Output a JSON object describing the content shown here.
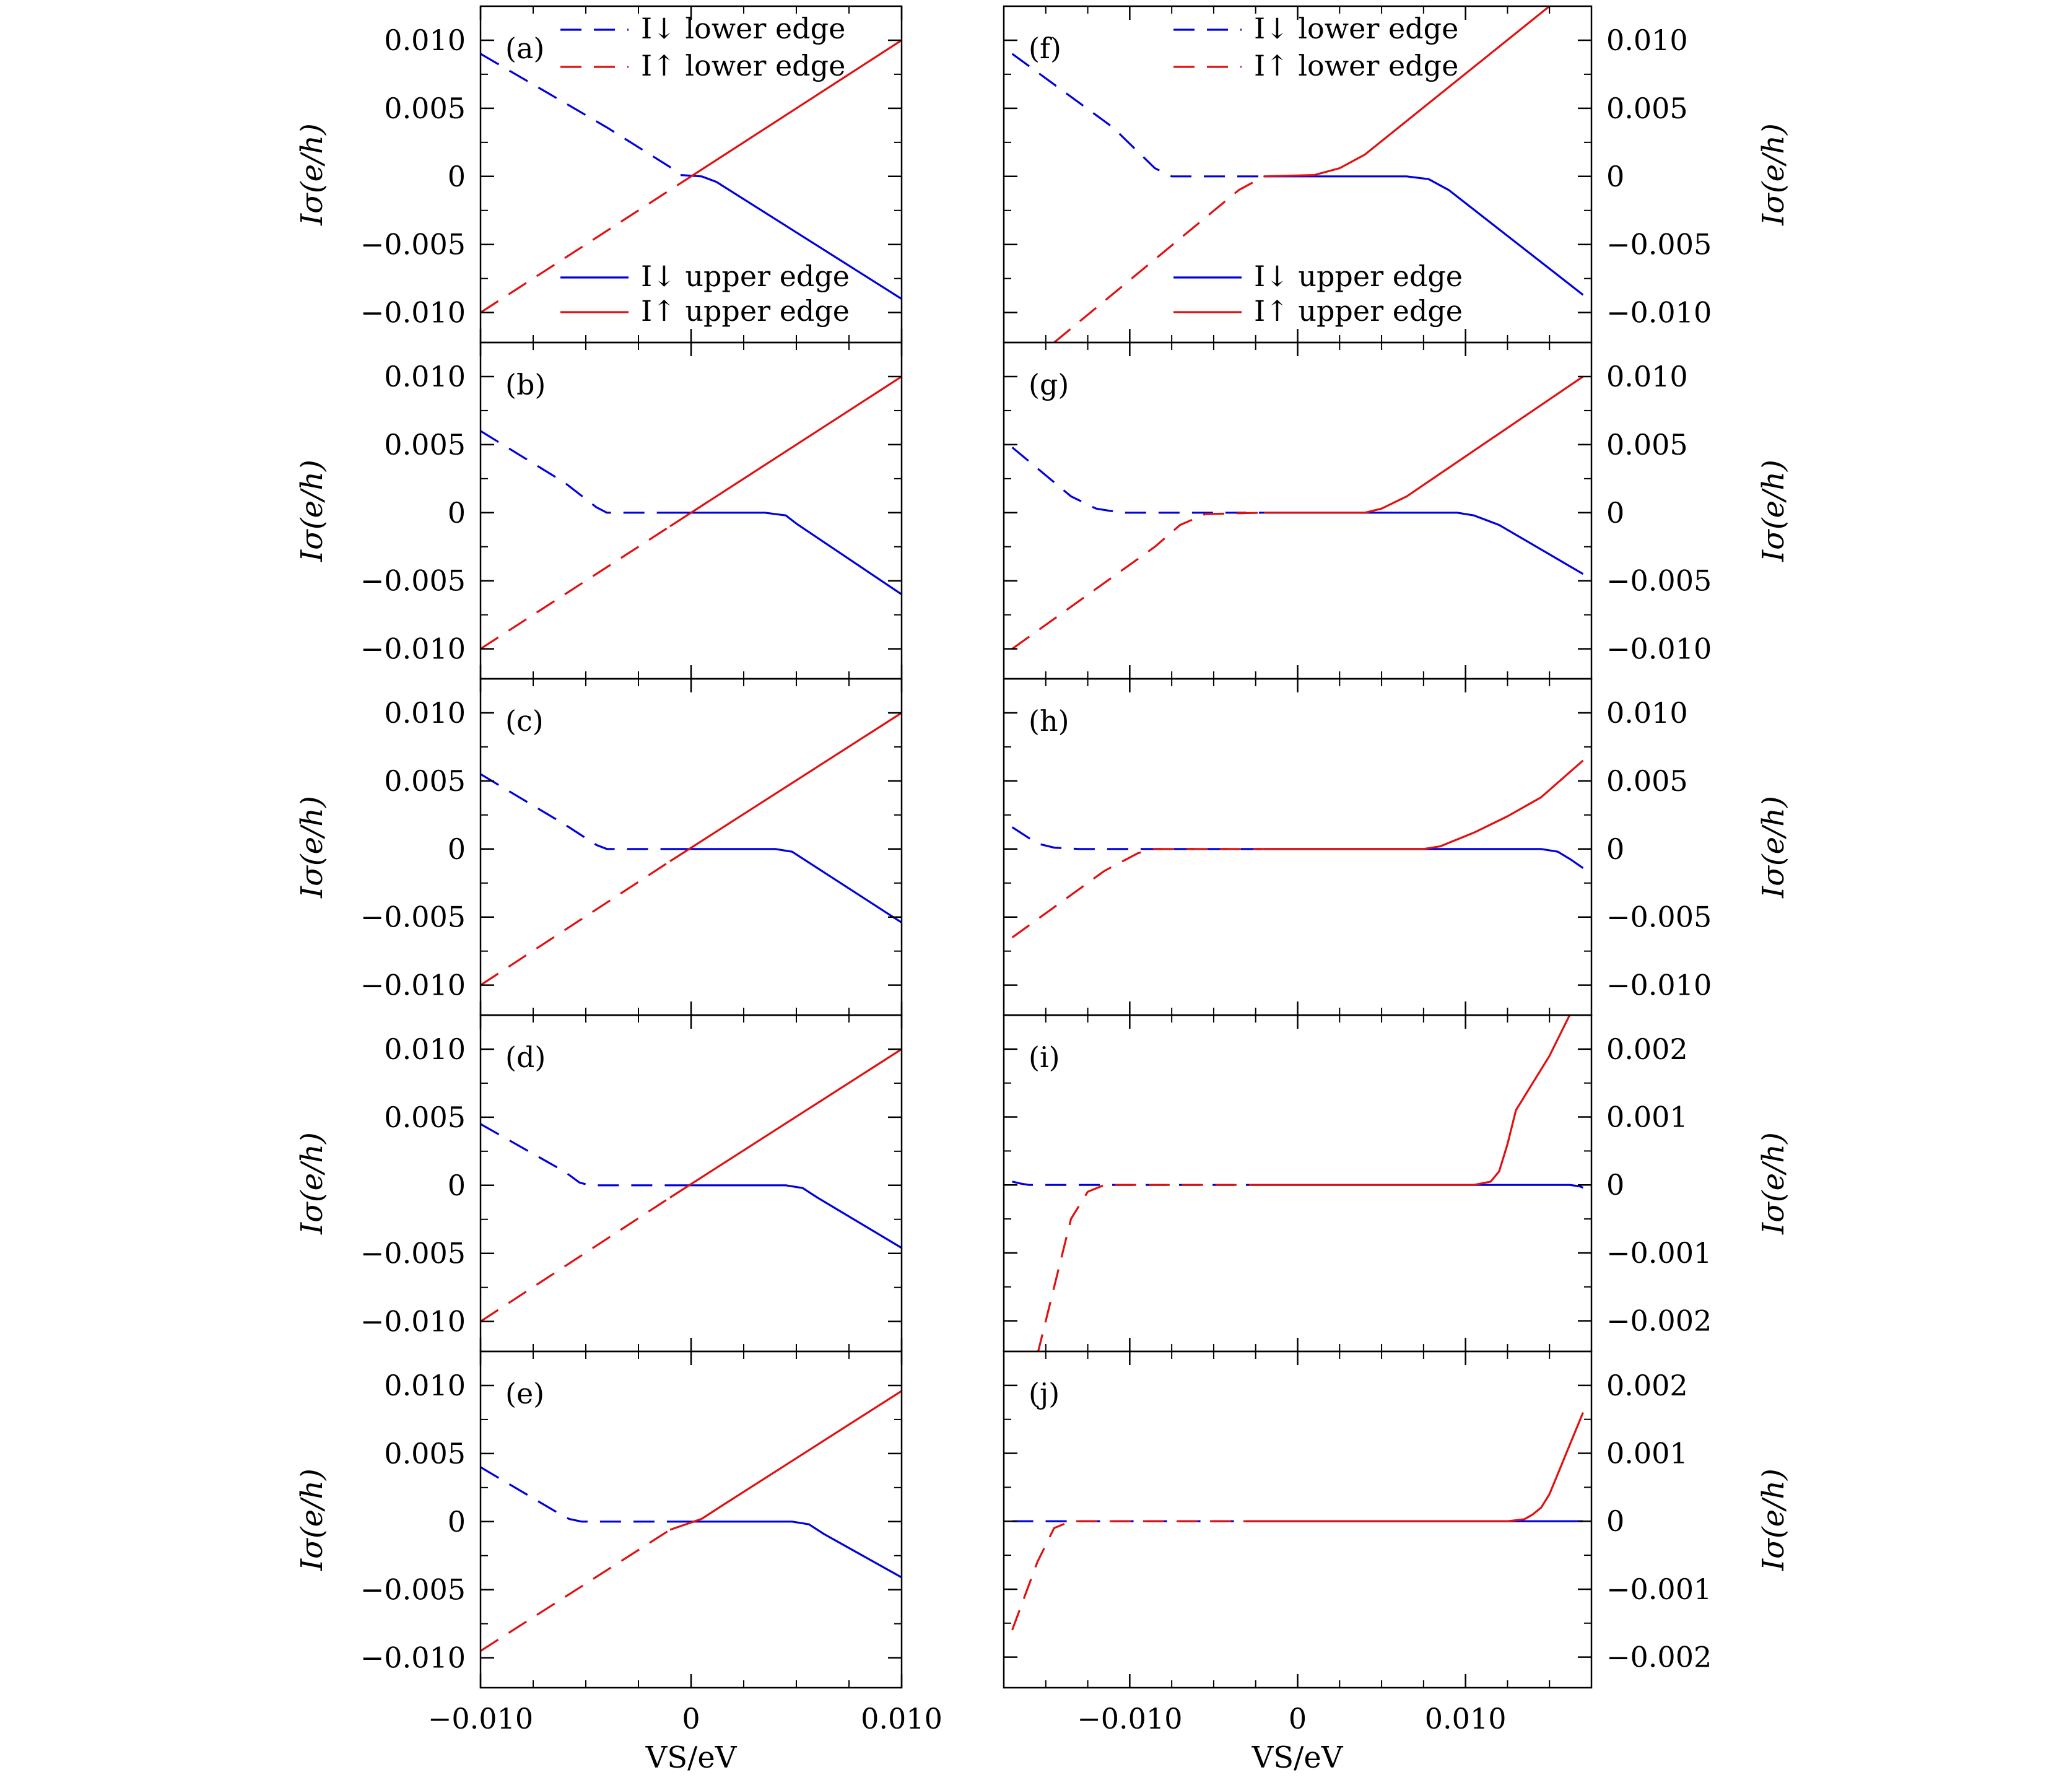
{
  "colors": {
    "down": "#0000dd",
    "up": "#e01010",
    "axis": "#000000"
  },
  "labels": {
    "ylabel": "Iσ(e/h)",
    "xlabel": "VS/eV",
    "legend": {
      "down_lower": "I↓ lower edge",
      "up_lower": "I↑ lower edge",
      "down_upper": "I↓ upper edge",
      "up_upper": "I↑ upper edge"
    }
  },
  "chart_data": [
    {
      "type": "line",
      "panel": "(a)",
      "xlim": [
        -0.01,
        0.01
      ],
      "ylim": [
        -0.0122,
        0.0125
      ],
      "yticks": [
        -0.01,
        -0.005,
        0,
        0.005,
        0.01
      ],
      "yticklabels": [
        "−0.010",
        "−0.005",
        "0",
        "0.005",
        "0.010"
      ],
      "xticks": [
        -0.01,
        0,
        0.01
      ],
      "xticklabels": [
        "",
        "",
        ""
      ],
      "series": [
        {
          "name": "I↓ lower edge",
          "x": [
            -0.01,
            -0.004,
            -0.0005
          ],
          "y": [
            0.009,
            0.0036,
            0.0002
          ]
        },
        {
          "name": "I↑ lower edge",
          "x": [
            -0.01,
            -0.004,
            -0.0005
          ],
          "y": [
            -0.01,
            -0.004,
            -0.0005
          ]
        },
        {
          "name": "I↓ upper edge",
          "x": [
            -0.0005,
            0.0005,
            0.0012,
            0.01
          ],
          "y": [
            0.0001,
            0.0,
            -0.0004,
            -0.009
          ]
        },
        {
          "name": "I↑ upper edge",
          "x": [
            -0.0005,
            0.01
          ],
          "y": [
            -0.0005,
            0.01
          ]
        }
      ]
    },
    {
      "type": "line",
      "panel": "(b)",
      "xlim": [
        -0.01,
        0.01
      ],
      "ylim": [
        -0.0122,
        0.0125
      ],
      "yticks": [
        -0.01,
        -0.005,
        0,
        0.005,
        0.01
      ],
      "yticklabels": [
        "−0.010",
        "−0.005",
        "0",
        "0.005",
        "0.010"
      ],
      "xticks": [
        -0.01,
        0,
        0.01
      ],
      "xticklabels": [
        "",
        "",
        ""
      ],
      "series": [
        {
          "name": "I↓ lower edge",
          "x": [
            -0.01,
            -0.006,
            -0.0045,
            -0.004,
            -0.001
          ],
          "y": [
            0.006,
            0.0022,
            0.0004,
            0.0,
            0.0
          ]
        },
        {
          "name": "I↑ lower edge",
          "x": [
            -0.01,
            -0.001
          ],
          "y": [
            -0.01,
            -0.001
          ]
        },
        {
          "name": "I↓ upper edge",
          "x": [
            -0.001,
            0.0035,
            0.0045,
            0.005,
            0.01
          ],
          "y": [
            0.0,
            0.0,
            -0.0002,
            -0.0008,
            -0.006
          ]
        },
        {
          "name": "I↑ upper edge",
          "x": [
            -0.001,
            0.01
          ],
          "y": [
            -0.001,
            0.01
          ]
        }
      ]
    },
    {
      "type": "line",
      "panel": "(c)",
      "xlim": [
        -0.01,
        0.01
      ],
      "ylim": [
        -0.0122,
        0.0125
      ],
      "yticks": [
        -0.01,
        -0.005,
        0,
        0.005,
        0.01
      ],
      "yticklabels": [
        "−0.010",
        "−0.005",
        "0",
        "0.005",
        "0.010"
      ],
      "xticks": [
        -0.01,
        0,
        0.01
      ],
      "xticklabels": [
        "",
        "",
        ""
      ],
      "series": [
        {
          "name": "I↓ lower edge",
          "x": [
            -0.01,
            -0.006,
            -0.0045,
            -0.004,
            -0.001
          ],
          "y": [
            0.0055,
            0.0018,
            0.0003,
            0.0,
            0.0
          ]
        },
        {
          "name": "I↑ lower edge",
          "x": [
            -0.01,
            -0.001
          ],
          "y": [
            -0.01,
            -0.0009
          ]
        },
        {
          "name": "I↓ upper edge",
          "x": [
            -0.001,
            0.004,
            0.0048,
            0.0055,
            0.01
          ],
          "y": [
            0.0,
            0.0,
            -0.0002,
            -0.0009,
            -0.0054
          ]
        },
        {
          "name": "I↑ upper edge",
          "x": [
            -0.001,
            0.01
          ],
          "y": [
            -0.0009,
            0.01
          ]
        }
      ]
    },
    {
      "type": "line",
      "panel": "(d)",
      "xlim": [
        -0.01,
        0.01
      ],
      "ylim": [
        -0.0122,
        0.0125
      ],
      "yticks": [
        -0.01,
        -0.005,
        0,
        0.005,
        0.01
      ],
      "yticklabels": [
        "−0.010",
        "−0.005",
        "0",
        "0.005",
        "0.010"
      ],
      "xticks": [
        -0.01,
        0,
        0.01
      ],
      "xticklabels": [
        "",
        "",
        ""
      ],
      "series": [
        {
          "name": "I↓ lower edge",
          "x": [
            -0.01,
            -0.006,
            -0.0053,
            -0.0048,
            -0.001
          ],
          "y": [
            0.0045,
            0.001,
            0.0002,
            0.0,
            0.0
          ]
        },
        {
          "name": "I↑ lower edge",
          "x": [
            -0.01,
            -0.001
          ],
          "y": [
            -0.01,
            -0.0009
          ]
        },
        {
          "name": "I↓ upper edge",
          "x": [
            -0.001,
            0.0045,
            0.0053,
            0.006,
            0.01
          ],
          "y": [
            0.0,
            0.0,
            -0.0002,
            -0.0009,
            -0.0046
          ]
        },
        {
          "name": "I↑ upper edge",
          "x": [
            -0.001,
            0.01
          ],
          "y": [
            -0.0009,
            0.01
          ]
        }
      ]
    },
    {
      "type": "line",
      "panel": "(e)",
      "xlim": [
        -0.01,
        0.01
      ],
      "ylim": [
        -0.0122,
        0.0125
      ],
      "yticks": [
        -0.01,
        -0.005,
        0,
        0.005,
        0.01
      ],
      "yticklabels": [
        "−0.010",
        "−0.005",
        "0",
        "0.005",
        "0.010"
      ],
      "xticks": [
        -0.01,
        0,
        0.01
      ],
      "xticklabels": [
        "−0.010",
        "0",
        "0.010"
      ],
      "series": [
        {
          "name": "I↓ lower edge",
          "x": [
            -0.01,
            -0.0065,
            -0.0058,
            -0.0052,
            -0.001
          ],
          "y": [
            0.004,
            0.0008,
            0.0002,
            0.0,
            0.0
          ]
        },
        {
          "name": "I↑ lower edge",
          "x": [
            -0.01,
            -0.001
          ],
          "y": [
            -0.0095,
            -0.0006
          ]
        },
        {
          "name": "I↓ upper edge",
          "x": [
            -0.001,
            0.0048,
            0.0056,
            0.0063,
            0.01
          ],
          "y": [
            0.0,
            0.0,
            -0.0002,
            -0.0009,
            -0.0041
          ]
        },
        {
          "name": "I↑ upper edge",
          "x": [
            -0.001,
            0.0005,
            0.0015,
            0.01
          ],
          "y": [
            -0.0006,
            0.0002,
            0.0012,
            0.0096
          ]
        }
      ]
    },
    {
      "type": "line",
      "panel": "(f)",
      "xlim": [
        -0.0175,
        0.0175
      ],
      "ylim": [
        -0.0122,
        0.0125
      ],
      "yticks": [
        -0.01,
        -0.005,
        0,
        0.005,
        0.01
      ],
      "yticklabels": [
        "−0.010",
        "−0.005",
        "0",
        "0.005",
        "0.010"
      ],
      "xticks": [
        -0.01,
        0,
        0.01
      ],
      "xticklabels": [
        "",
        "",
        ""
      ],
      "series": [
        {
          "name": "I↓ lower edge",
          "x": [
            -0.017,
            -0.011,
            -0.0085,
            -0.0075,
            -0.002
          ],
          "y": [
            0.009,
            0.0036,
            0.0006,
            0.0,
            0.0
          ]
        },
        {
          "name": "I↑ lower edge",
          "x": [
            -0.0145,
            -0.0035,
            -0.002
          ],
          "y": [
            -0.0122,
            -0.001,
            0.0
          ]
        },
        {
          "name": "I↓ upper edge",
          "x": [
            -0.002,
            0.0065,
            0.0078,
            0.009,
            0.017
          ],
          "y": [
            0.0,
            0.0,
            -0.0002,
            -0.001,
            -0.0087
          ]
        },
        {
          "name": "I↑ upper edge",
          "x": [
            -0.002,
            0.001,
            0.0025,
            0.004,
            0.015
          ],
          "y": [
            0.0,
            0.0001,
            0.0006,
            0.0016,
            0.0125
          ]
        }
      ]
    },
    {
      "type": "line",
      "panel": "(g)",
      "xlim": [
        -0.0175,
        0.0175
      ],
      "ylim": [
        -0.0122,
        0.0125
      ],
      "yticks": [
        -0.01,
        -0.005,
        0,
        0.005,
        0.01
      ],
      "yticklabels": [
        "−0.010",
        "−0.005",
        "0",
        "0.005",
        "0.010"
      ],
      "xticks": [
        -0.01,
        0,
        0.01
      ],
      "xticklabels": [
        "",
        "",
        ""
      ],
      "series": [
        {
          "name": "I↓ lower edge",
          "x": [
            -0.017,
            -0.0135,
            -0.012,
            -0.0105,
            -0.002
          ],
          "y": [
            0.0048,
            0.0012,
            0.0003,
            0.0,
            0.0
          ]
        },
        {
          "name": "I↑ lower edge",
          "x": [
            -0.017,
            -0.0085,
            -0.007,
            -0.0055,
            -0.002
          ],
          "y": [
            -0.01,
            -0.0025,
            -0.0009,
            -0.0001,
            0.0
          ]
        },
        {
          "name": "I↓ upper edge",
          "x": [
            -0.002,
            0.0095,
            0.0105,
            0.012,
            0.017
          ],
          "y": [
            0.0,
            0.0,
            -0.0002,
            -0.0009,
            -0.0045
          ]
        },
        {
          "name": "I↑ upper edge",
          "x": [
            -0.002,
            0.004,
            0.005,
            0.0065,
            0.017
          ],
          "y": [
            0.0,
            0.0,
            0.0003,
            0.0012,
            0.01
          ]
        }
      ]
    },
    {
      "type": "line",
      "panel": "(h)",
      "xlim": [
        -0.0175,
        0.0175
      ],
      "ylim": [
        -0.0122,
        0.0125
      ],
      "yticks": [
        -0.01,
        -0.005,
        0,
        0.005,
        0.01
      ],
      "yticklabels": [
        "−0.010",
        "−0.005",
        "0",
        "0.005",
        "0.010"
      ],
      "xticks": [
        -0.01,
        0,
        0.01
      ],
      "xticklabels": [
        "",
        "",
        ""
      ],
      "series": [
        {
          "name": "I↓ lower edge",
          "x": [
            -0.017,
            -0.0155,
            -0.0145,
            -0.013,
            -0.002
          ],
          "y": [
            0.0016,
            0.0004,
            0.0001,
            0.0,
            0.0
          ]
        },
        {
          "name": "I↑ lower edge",
          "x": [
            -0.017,
            -0.0115,
            -0.0095,
            -0.0085,
            -0.002
          ],
          "y": [
            -0.0065,
            -0.0016,
            -0.0003,
            0.0,
            0.0
          ]
        },
        {
          "name": "I↓ upper edge",
          "x": [
            -0.002,
            0.0145,
            0.0155,
            0.0163,
            0.017
          ],
          "y": [
            0.0,
            0.0,
            -0.0002,
            -0.0008,
            -0.0014
          ]
        },
        {
          "name": "I↑ upper edge",
          "x": [
            -0.002,
            0.0075,
            0.0085,
            0.0105,
            0.0125,
            0.0145,
            0.017
          ],
          "y": [
            0.0,
            0.0,
            0.0002,
            0.0012,
            0.0024,
            0.0038,
            0.0065
          ]
        }
      ]
    },
    {
      "type": "line",
      "panel": "(i)",
      "xlim": [
        -0.0175,
        0.0175
      ],
      "ylim": [
        -0.00245,
        0.0025
      ],
      "yticks": [
        -0.002,
        -0.001,
        0,
        0.001,
        0.002
      ],
      "yticklabels": [
        "−0.002",
        "−0.001",
        "0",
        "0.001",
        "0.002"
      ],
      "xticks": [
        -0.01,
        0,
        0.01
      ],
      "xticklabels": [
        "",
        "",
        ""
      ],
      "series": [
        {
          "name": "I↓ lower edge",
          "x": [
            -0.017,
            -0.0165,
            -0.016,
            -0.002
          ],
          "y": [
            5e-05,
            2e-05,
            0.0,
            0.0
          ]
        },
        {
          "name": "I↑ lower edge",
          "x": [
            -0.0155,
            -0.0135,
            -0.0125,
            -0.0115,
            -0.002
          ],
          "y": [
            -0.0025,
            -0.0005,
            -0.0001,
            0.0,
            0.0
          ]
        },
        {
          "name": "I↓ upper edge",
          "x": [
            -0.002,
            0.0162,
            0.0168,
            0.017
          ],
          "y": [
            0.0,
            0.0,
            -2e-05,
            -4e-05
          ]
        },
        {
          "name": "I↑ upper edge",
          "x": [
            -0.002,
            0.0105,
            0.0115,
            0.012,
            0.0125,
            0.013,
            0.014,
            0.015,
            0.0158,
            0.0162
          ],
          "y": [
            0.0,
            0.0,
            5e-05,
            0.0002,
            0.0006,
            0.0011,
            0.0015,
            0.0019,
            0.0023,
            0.0025
          ]
        }
      ]
    },
    {
      "type": "line",
      "panel": "(j)",
      "xlim": [
        -0.0175,
        0.0175
      ],
      "ylim": [
        -0.00245,
        0.0025
      ],
      "yticks": [
        -0.002,
        -0.001,
        0,
        0.001,
        0.002
      ],
      "yticklabels": [
        "−0.002",
        "−0.001",
        "0",
        "0.001",
        "0.002"
      ],
      "xticks": [
        -0.01,
        0,
        0.01
      ],
      "xticklabels": [
        "−0.010",
        "0",
        "0.010"
      ],
      "series": [
        {
          "name": "I↓ lower edge",
          "x": [
            -0.017,
            -0.002
          ],
          "y": [
            0.0,
            0.0
          ]
        },
        {
          "name": "I↑ lower edge",
          "x": [
            -0.017,
            -0.0155,
            -0.0145,
            -0.0135,
            -0.002
          ],
          "y": [
            -0.0016,
            -0.0006,
            -0.0001,
            0.0,
            0.0
          ]
        },
        {
          "name": "I↓ upper edge",
          "x": [
            -0.002,
            0.017
          ],
          "y": [
            0.0,
            0.0
          ]
        },
        {
          "name": "I↑ upper edge",
          "x": [
            -0.002,
            0.0125,
            0.0135,
            0.014,
            0.0145,
            0.015,
            0.0155,
            0.016,
            0.017
          ],
          "y": [
            0.0,
            0.0,
            3e-05,
            0.0001,
            0.0002,
            0.0004,
            0.0007,
            0.001,
            0.0016
          ]
        }
      ]
    }
  ]
}
